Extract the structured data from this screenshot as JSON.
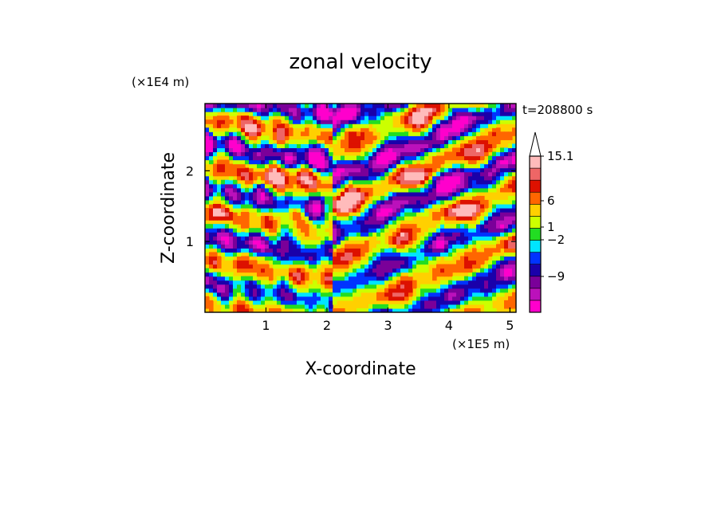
{
  "chart_data": {
    "type": "heatmap",
    "title": "zonal velocity",
    "xlabel": "X-coordinate",
    "ylabel": "Z-coordinate",
    "x_unit": "(×1E5 m)",
    "y_unit": "(×1E4 m)",
    "time_label": "t=208800 s",
    "xlim": [
      0,
      5.1
    ],
    "ylim": [
      0,
      2.95
    ],
    "x_ticks": [
      {
        "value": 1,
        "label": "1"
      },
      {
        "value": 2,
        "label": "2"
      },
      {
        "value": 3,
        "label": "3"
      },
      {
        "value": 4,
        "label": "4"
      },
      {
        "value": 5,
        "label": "5"
      }
    ],
    "y_ticks": [
      {
        "value": 1,
        "label": "1"
      },
      {
        "value": 2,
        "label": "2"
      }
    ],
    "colorbar": {
      "colors": [
        "#ff00cc",
        "#bb11bb",
        "#7a0099",
        "#1a00aa",
        "#0033ff",
        "#00e5ff",
        "#22dd22",
        "#ccff00",
        "#ffd000",
        "#ff6600",
        "#dd1100",
        "#ee6666",
        "#ffbbbb",
        "#ffffff"
      ],
      "labels": [
        {
          "value": 15.1,
          "text": "15.1"
        },
        {
          "value": 6,
          "text": "6"
        },
        {
          "value": 1,
          "text": "1"
        },
        {
          "value": -2,
          "text": "−2"
        },
        {
          "value": -9,
          "text": "−9"
        }
      ]
    }
  }
}
